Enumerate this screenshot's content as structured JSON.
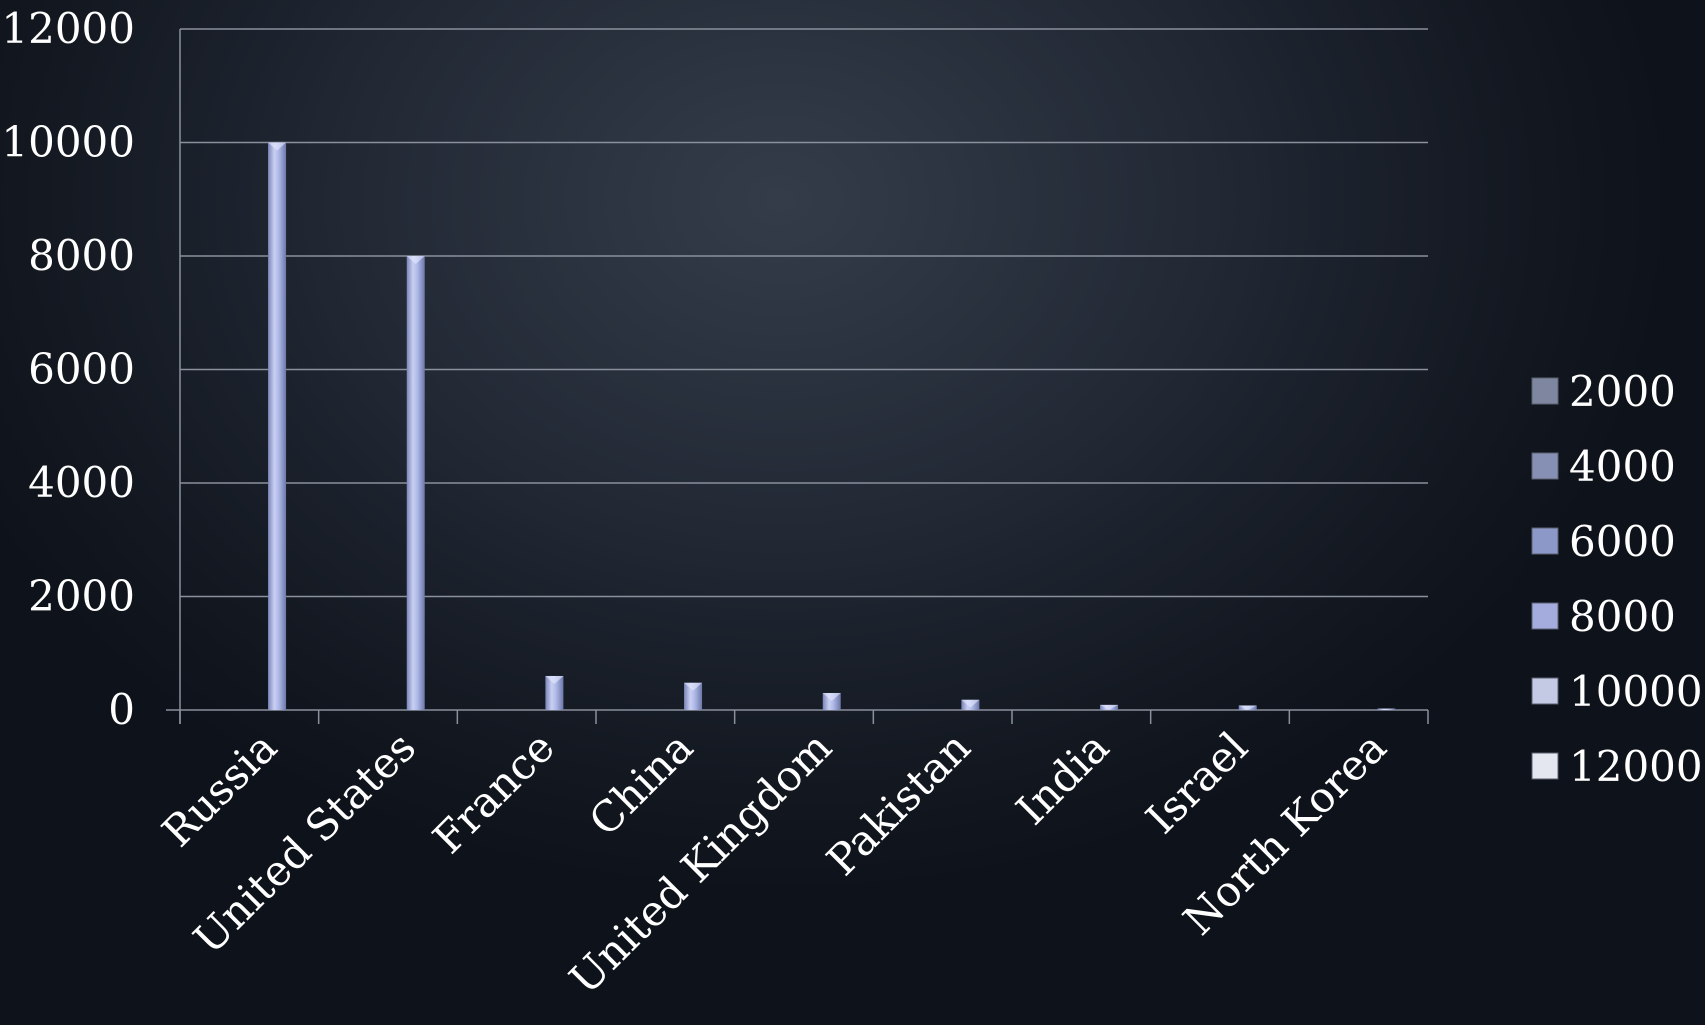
{
  "chart_data": {
    "type": "bar",
    "title": "",
    "xlabel": "",
    "ylabel": "",
    "categories": [
      "Russia",
      "United States",
      "France",
      "China",
      "United Kingdom",
      "Pakistan",
      "India",
      "Israel",
      "North Korea"
    ],
    "values": [
      10000,
      8000,
      600,
      480,
      300,
      180,
      90,
      80,
      25
    ],
    "ylim": [
      0,
      12000
    ],
    "yticks": [
      0,
      2000,
      4000,
      6000,
      8000,
      10000,
      12000
    ],
    "grid": true,
    "legend_placement": "right",
    "legend": [
      "2000",
      "4000",
      "6000",
      "8000",
      "10000",
      "12000"
    ],
    "colors": {
      "bar": "#aeb8e2",
      "grid": "#8a909c",
      "text": "#ffffff",
      "legend_swatches": [
        "#7e879f",
        "#8690b4",
        "#8c98c8",
        "#a3acdc",
        "#c4c9e4",
        "#e4e6f0"
      ]
    }
  }
}
